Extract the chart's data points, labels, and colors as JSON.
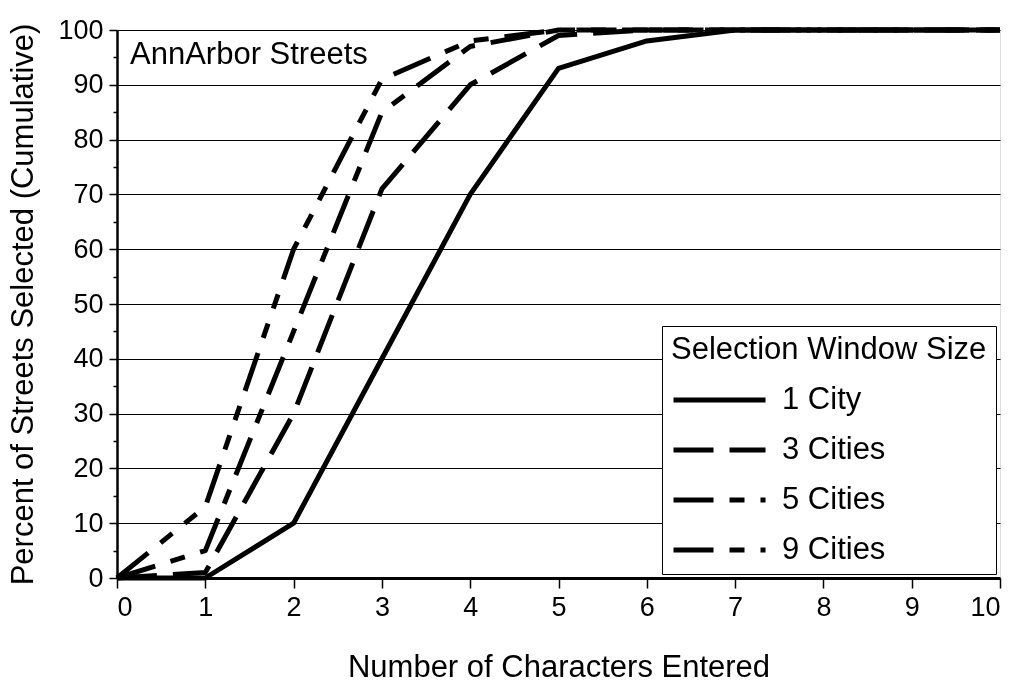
{
  "chart_data": {
    "type": "line",
    "xlabel": "Number of Characters Entered",
    "ylabel": "Percent of Streets Selected (Cumulative)",
    "legend_title": "Selection Window Size",
    "annotations": [
      "AnnArbor Streets"
    ],
    "x": [
      0,
      1,
      2,
      3,
      4,
      5,
      6,
      7,
      8,
      9,
      10
    ],
    "series": [
      {
        "name": "1 City",
        "color": "#000000",
        "line_style": "solid",
        "values": [
          0,
          0,
          10,
          40,
          70,
          93,
          98,
          100,
          100,
          100,
          100
        ]
      },
      {
        "name": "3 Cities",
        "color": "#000000",
        "line_style": "dashed",
        "values": [
          0,
          1,
          30,
          71,
          90,
          99,
          100,
          100,
          100,
          100,
          100
        ]
      },
      {
        "name": "5 Cities",
        "color": "#000000",
        "line_style": "dashdot",
        "values": [
          0,
          5,
          45,
          85,
          97,
          100,
          100,
          100,
          100,
          100,
          100
        ]
      },
      {
        "name": "9 Cities",
        "color": "#000000",
        "line_style": "dashdotdot",
        "values": [
          0,
          13,
          60,
          91,
          98,
          100,
          100,
          100,
          100,
          100,
          100
        ]
      }
    ],
    "xlim": [
      0,
      10
    ],
    "ylim": [
      0,
      100
    ],
    "xticks": [
      0,
      1,
      2,
      3,
      4,
      5,
      6,
      7,
      8,
      9,
      10
    ],
    "yticks": [
      0,
      {
        "value": 5,
        "label": null
      },
      10,
      {
        "value": 15,
        "label": null
      },
      20,
      {
        "value": 25,
        "label": null
      },
      30,
      {
        "value": 35,
        "label": null
      },
      40,
      {
        "value": 45,
        "label": null
      },
      50,
      {
        "value": 55,
        "label": null
      },
      60,
      {
        "value": 65,
        "label": null
      },
      70,
      {
        "value": 75,
        "label": null
      },
      80,
      {
        "value": 85,
        "label": null
      },
      90,
      {
        "value": 95,
        "label": null
      },
      100
    ],
    "grid": "y",
    "legend": "bottom right",
    "marker": "none"
  }
}
